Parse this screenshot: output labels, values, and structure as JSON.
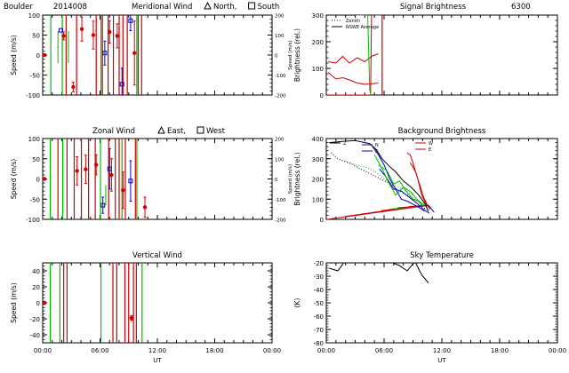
{
  "header": {
    "station": "Boulder",
    "date": "2014008",
    "wavelength": "6300"
  },
  "chart_data": [
    {
      "id": "meridional",
      "type": "scatter",
      "title": "Meridional Wind",
      "legend": [
        {
          "symbol": "triangle",
          "label": "North,"
        },
        {
          "symbol": "square",
          "label": "South"
        }
      ],
      "ylabel": "Speed (m/s)",
      "ylabel_right": "Speed (m/s)",
      "xlim": [
        0,
        24
      ],
      "ylim": [
        -100,
        100
      ],
      "yticks": [
        -100,
        -50,
        0,
        50,
        100
      ],
      "ylim_right": [
        -200,
        200
      ],
      "yticks_right": [
        -200,
        -100,
        0,
        100,
        200
      ],
      "xticks": [
        "00:00",
        "06:00",
        "12:00",
        "18:00",
        "00:00"
      ],
      "x_tick_labels_shown": false,
      "series": [
        {
          "color": "#d40000",
          "marker": "dot",
          "points": [
            {
              "x": 0.2,
              "y": 0,
              "err": 0
            },
            {
              "x": 2.2,
              "y": 48,
              "err": 10
            },
            {
              "x": 3.2,
              "y": -80,
              "err": 12
            },
            {
              "x": 4.1,
              "y": 65,
              "err": 30
            },
            {
              "x": 5.3,
              "y": 50,
              "err": 35
            },
            {
              "x": 7.0,
              "y": 58,
              "err": 28
            },
            {
              "x": 7.8,
              "y": 48,
              "err": 30
            },
            {
              "x": 9.6,
              "y": 5,
              "err": 80
            }
          ]
        },
        {
          "color": "#0000cc",
          "marker": "square",
          "points": [
            {
              "x": 1.9,
              "y": 62,
              "err": 0
            },
            {
              "x": 6.5,
              "y": 5,
              "err": 30
            },
            {
              "x": 8.3,
              "y": -73,
              "err": 40
            },
            {
              "x": 9.2,
              "y": 86,
              "err": 25
            }
          ]
        },
        {
          "color": "#00bb00",
          "marker": "bar",
          "points": [
            {
              "x": 1.6,
              "y": 20,
              "err": 40
            },
            {
              "x": 2.7,
              "y": 20,
              "err": 40
            }
          ]
        }
      ],
      "vlines": [
        {
          "color": "#cc0000",
          "x": [
            2.45,
            3.55,
            5.6,
            6.25,
            6.85,
            7.4,
            8.0,
            8.4,
            8.85,
            10.0,
            10.35
          ]
        },
        {
          "color": "#00bb00",
          "x": [
            0.85,
            2.05,
            6.1,
            9.85
          ]
        }
      ]
    },
    {
      "id": "signal",
      "type": "line",
      "title": "Signal Brightness",
      "ylabel": "Brightness (rel.)",
      "xlim": [
        0,
        24
      ],
      "ylim": [
        0,
        300
      ],
      "yticks": [
        0,
        100,
        200,
        300
      ],
      "xticks": [
        "00:00",
        "06:00",
        "12:00",
        "18:00",
        "00:00"
      ],
      "x_tick_labels_shown": false,
      "legend": [
        "Zenith",
        "NSWE Average"
      ],
      "series": [
        {
          "name": "Zenith",
          "color": "#000000",
          "dash": "dots",
          "x": [],
          "y": []
        },
        {
          "name": "NSWE Average",
          "color": "#000000",
          "dash": "solid",
          "x": [],
          "y": []
        },
        {
          "color": "#cc0000",
          "x": [
            0.2,
            1.0,
            1.7,
            2.4,
            3.2,
            4.0,
            4.7,
            5.4
          ],
          "y": [
            125,
            120,
            145,
            120,
            140,
            125,
            145,
            155
          ]
        },
        {
          "color": "#cc0000",
          "x": [
            0.2,
            1.0,
            1.7,
            2.4,
            3.2,
            4.0,
            4.7,
            5.4
          ],
          "y": [
            85,
            60,
            65,
            57,
            45,
            40,
            42,
            45
          ]
        },
        {
          "color": "#cc0000",
          "x": [
            0.2,
            2.5,
            4.6,
            4.7,
            5.2,
            5.7
          ],
          "y": [
            0,
            0,
            0,
            300,
            300,
            300
          ]
        },
        {
          "color": "#00bb00",
          "x": [
            3.1,
            3.25,
            3.9,
            4.3,
            4.5,
            4.65
          ],
          "y": [
            300,
            300,
            300,
            300,
            20,
            0
          ]
        }
      ],
      "vlines": [
        {
          "color": "#cc0000",
          "x": [
            5.8
          ]
        }
      ]
    },
    {
      "id": "zonal",
      "type": "scatter",
      "title": "Zonal Wind",
      "legend": [
        {
          "symbol": "triangle",
          "label": "East,"
        },
        {
          "symbol": "square",
          "label": "West"
        }
      ],
      "ylabel": "Speed (m/s)",
      "ylabel_right": "Speed (m/s)",
      "xlim": [
        0,
        24
      ],
      "ylim": [
        -100,
        100
      ],
      "yticks": [
        -100,
        -50,
        0,
        50,
        100
      ],
      "ylim_right": [
        -200,
        200
      ],
      "yticks_right": [
        -200,
        -100,
        0,
        100,
        200
      ],
      "xticks": [
        "00:00",
        "06:00",
        "12:00",
        "18:00",
        "00:00"
      ],
      "x_tick_labels_shown": false,
      "series": [
        {
          "color": "#d40000",
          "marker": "dot",
          "points": [
            {
              "x": 0.2,
              "y": 0,
              "err": 0
            },
            {
              "x": 3.6,
              "y": 20,
              "err": 35
            },
            {
              "x": 4.5,
              "y": 24,
              "err": 35
            },
            {
              "x": 5.6,
              "y": 35,
              "err": 25
            },
            {
              "x": 7.2,
              "y": 10,
              "err": 40
            },
            {
              "x": 8.4,
              "y": -28,
              "err": 45
            },
            {
              "x": 10.7,
              "y": -70,
              "err": 25
            }
          ]
        },
        {
          "color": "#0000cc",
          "marker": "square",
          "points": [
            {
              "x": 6.3,
              "y": -65,
              "err": 20
            },
            {
              "x": 7.0,
              "y": 25,
              "err": 50
            },
            {
              "x": 9.2,
              "y": -5,
              "err": 50
            }
          ]
        },
        {
          "color": "#00bb00",
          "marker": "bar",
          "points": [
            {
              "x": 6.6,
              "y": -40,
              "err": 25
            }
          ]
        }
      ],
      "vlines": [
        {
          "color": "#cc0000",
          "x": [
            1.6,
            2.55,
            3.3,
            4.05,
            4.8,
            5.5,
            6.9,
            7.6,
            8.0,
            8.65,
            9.7
          ]
        },
        {
          "color": "#00bb00",
          "x": [
            0.8,
            2.1,
            6.05,
            8.3,
            9.85
          ]
        }
      ]
    },
    {
      "id": "background",
      "type": "line",
      "title": "Background Brightness",
      "ylabel": "Brightness (rel.)",
      "xlim": [
        0,
        24
      ],
      "ylim": [
        0,
        400
      ],
      "yticks": [
        0,
        100,
        200,
        300,
        400
      ],
      "xticks": [
        "00:00",
        "06:00",
        "12:00",
        "18:00",
        "00:00"
      ],
      "x_tick_labels_shown": false,
      "legend": [
        "Z",
        "N",
        "S",
        "W",
        "E"
      ],
      "series": [
        {
          "color": "#000000",
          "x": [
            0.3,
            1.5,
            3.0,
            4.5,
            5.2,
            5.8,
            6.5,
            7.2,
            8.0,
            8.8,
            9.6,
            10.2,
            10.6
          ],
          "y": [
            380,
            385,
            390,
            375,
            345,
            300,
            265,
            235,
            190,
            160,
            120,
            80,
            40
          ]
        },
        {
          "color": "#000000",
          "dash": "dots",
          "x": [
            0.5,
            1.2,
            2.0,
            2.8,
            3.5,
            4.2,
            5.0,
            5.8,
            6.6,
            7.3,
            8.0,
            8.6,
            9.2,
            9.8,
            10.3
          ],
          "y": [
            330,
            300,
            285,
            270,
            250,
            235,
            215,
            195,
            180,
            150,
            130,
            115,
            100,
            75,
            50
          ]
        },
        {
          "color": "#0000cc",
          "x": [
            4.8,
            5.4,
            6.0,
            6.6,
            7.2,
            7.8,
            8.4,
            9.0,
            9.6,
            10.2
          ],
          "y": [
            360,
            320,
            270,
            200,
            150,
            100,
            90,
            75,
            60,
            40
          ]
        },
        {
          "color": "#0000cc",
          "x": [
            5.5,
            6.2,
            7.0,
            7.8,
            8.6,
            9.4,
            10.1,
            10.7
          ],
          "y": [
            250,
            210,
            150,
            140,
            110,
            80,
            50,
            30
          ]
        },
        {
          "color": "#00bb00",
          "x": [
            5.0,
            5.8,
            6.5,
            7.2,
            8.0,
            8.8,
            9.5,
            10.2
          ],
          "y": [
            320,
            250,
            180,
            120,
            160,
            135,
            95,
            70
          ]
        },
        {
          "color": "#00bb00",
          "x": [
            5.4,
            6.3,
            7.0,
            7.6,
            8.3,
            9.0,
            9.6,
            10.1
          ],
          "y": [
            270,
            240,
            175,
            190,
            140,
            100,
            90,
            65
          ]
        },
        {
          "color": "#00bb00",
          "dash": "dots",
          "x": [
            2.0,
            3.0,
            4.0,
            5.0,
            6.0,
            7.0,
            8.0,
            9.0
          ],
          "y": [
            290,
            270,
            260,
            240,
            200,
            170,
            150,
            120
          ]
        },
        {
          "color": "#cc0000",
          "x": [
            8.4,
            8.7,
            9.0,
            9.5,
            9.9,
            10.3,
            10.6
          ],
          "y": [
            330,
            320,
            280,
            200,
            120,
            80,
            60
          ]
        },
        {
          "color": "#cc0000",
          "x": [
            8.7,
            9.0,
            9.3,
            9.7,
            10.1,
            10.5,
            10.8
          ],
          "y": [
            280,
            260,
            230,
            170,
            110,
            70,
            50
          ]
        }
      ],
      "fan": {
        "apex": {
          "x": 10.6,
          "y": 70
        },
        "ends": [
          {
            "x": 0.1,
            "y": 0,
            "color": "#cc0000"
          },
          {
            "x": 2.0,
            "y": 15,
            "color": "#cc0000"
          },
          {
            "x": 3.6,
            "y": 26,
            "color": "#cc0000"
          },
          {
            "x": 4.8,
            "y": 34,
            "color": "#cc0000"
          },
          {
            "x": 5.7,
            "y": 43,
            "color": "#cc0000"
          },
          {
            "x": 6.5,
            "y": 50,
            "color": "#00bb00"
          },
          {
            "x": 7.4,
            "y": 57,
            "color": "#cc0000"
          },
          {
            "x": 8.6,
            "y": 63,
            "color": "#cc0000"
          },
          {
            "x": 11.2,
            "y": 35,
            "color": "#0000cc"
          }
        ]
      }
    },
    {
      "id": "vertical",
      "type": "scatter",
      "title": "Vertical Wind",
      "ylabel": "Speed (m/s)",
      "xlabel": "UT",
      "xlim": [
        0,
        24
      ],
      "ylim": [
        -50,
        50
      ],
      "yticks": [
        -40,
        -20,
        0,
        20,
        40
      ],
      "xticks": [
        "00:00",
        "06:00",
        "12:00",
        "18:00",
        "00:00"
      ],
      "x_tick_labels_shown": true,
      "series": [
        {
          "color": "#d40000",
          "marker": "dot",
          "points": [
            {
              "x": 0.2,
              "y": 0,
              "err": 0
            },
            {
              "x": 9.3,
              "y": -19,
              "err": 3
            }
          ]
        }
      ],
      "vlines": [
        {
          "color": "#cc0000",
          "x": [
            2.2,
            2.55,
            7.35,
            7.75,
            8.6,
            9.0,
            9.5,
            9.8
          ]
        },
        {
          "color": "#00bb00",
          "x": [
            0.8,
            1.8,
            6.1,
            10.4
          ]
        }
      ]
    },
    {
      "id": "sky",
      "type": "line",
      "title": "Sky Temperature",
      "ylabel": "(K)",
      "xlabel": "UT",
      "xlim": [
        0,
        24
      ],
      "ylim": [
        -80,
        -20
      ],
      "yticks": [
        -80,
        -70,
        -60,
        -50,
        -40,
        -30,
        -20
      ],
      "xticks": [
        "00:00",
        "06:00",
        "12:00",
        "18:00",
        "00:00"
      ],
      "x_tick_labels_shown": true,
      "series": [
        {
          "color": "#000000",
          "x": [
            0.3,
            1.2,
            2.0,
            2.6,
            6.2,
            7.6,
            8.4,
            9.2,
            9.9,
            10.6
          ],
          "y": [
            -24,
            -26,
            -18,
            -14,
            -18,
            -22,
            -26,
            -19,
            -29,
            -35
          ]
        }
      ]
    }
  ]
}
